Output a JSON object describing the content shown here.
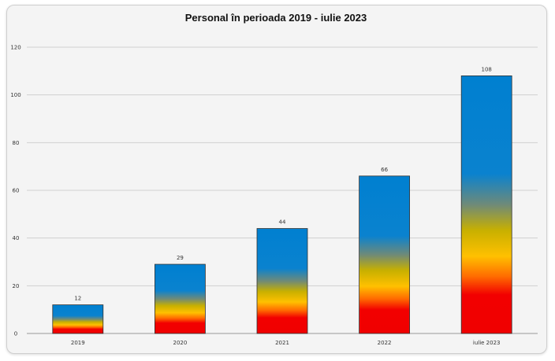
{
  "chart_data": {
    "type": "bar",
    "title": "Personal în perioada 2019 - iulie 2023",
    "xlabel": "",
    "ylabel": "",
    "categories": [
      "2019",
      "2020",
      "2021",
      "2022",
      "iulie 2023"
    ],
    "values": [
      12,
      29,
      44,
      66,
      108
    ],
    "data_labels": [
      "12",
      "29",
      "44",
      "66",
      "108"
    ],
    "ylim": [
      0,
      120
    ],
    "yticks": [
      0,
      20,
      40,
      60,
      80,
      100,
      120
    ],
    "grid": true,
    "legend": "none",
    "colors": {
      "bottom": "#f00000",
      "orange": "#ff8000",
      "yellow": "#ffc000",
      "olive": "#a0a040",
      "top": "#0080d0"
    }
  }
}
